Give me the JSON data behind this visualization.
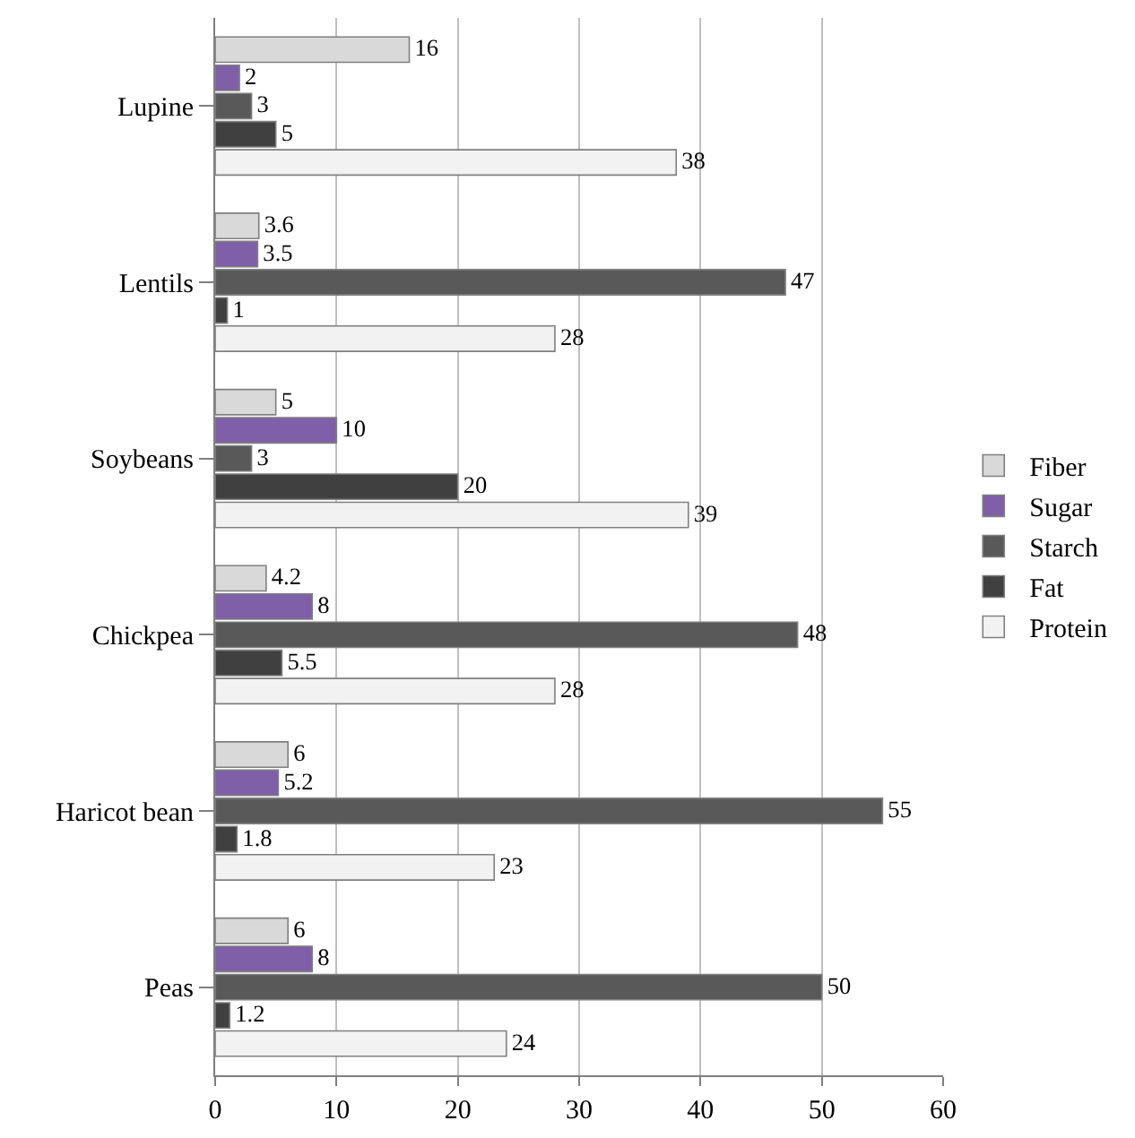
{
  "chart_data": {
    "type": "bar",
    "orientation": "horizontal",
    "categories": [
      "Lupine",
      "Lentils",
      "Soybeans",
      "Chickpea",
      "Haricot bean",
      "Peas"
    ],
    "series": [
      {
        "name": "Fiber",
        "color": "#d9d9d9",
        "values": [
          16,
          3.6,
          5,
          4.2,
          6,
          6
        ]
      },
      {
        "name": "Sugar",
        "color": "#7f5fa8",
        "values": [
          2,
          3.5,
          10,
          8,
          5.2,
          8
        ]
      },
      {
        "name": "Starch",
        "color": "#595959",
        "values": [
          3,
          47,
          3,
          48,
          55,
          50
        ]
      },
      {
        "name": "Fat",
        "color": "#404040",
        "values": [
          5,
          1,
          20,
          5.5,
          1.8,
          1.2
        ]
      },
      {
        "name": "Protein",
        "color": "#f2f2f2",
        "values": [
          38,
          28,
          39,
          28,
          23,
          24
        ]
      }
    ],
    "xlim": [
      0,
      60
    ],
    "xticks": [
      0,
      10,
      20,
      30,
      40,
      50,
      60
    ],
    "grid": "x",
    "legend": "right",
    "data_labels": true
  }
}
